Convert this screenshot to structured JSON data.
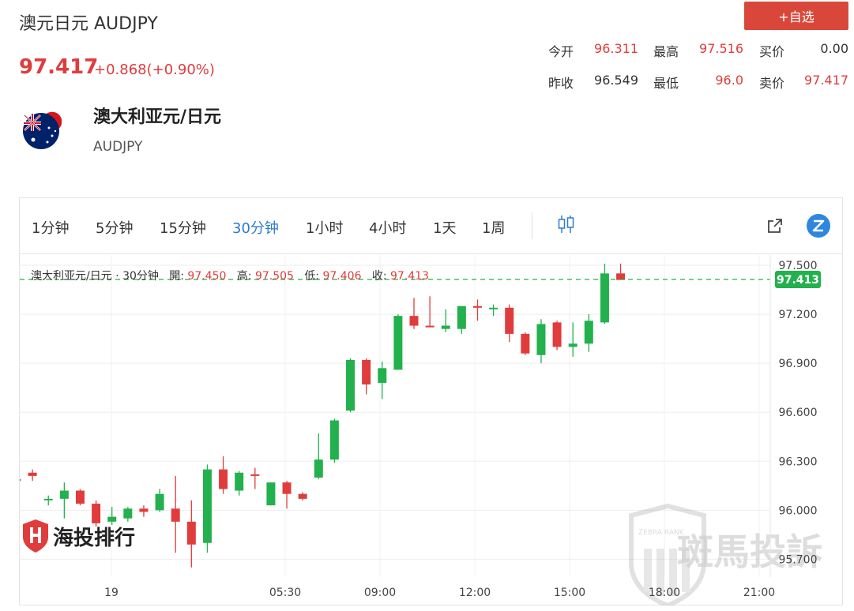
{
  "header": {
    "title": "澳元日元 AUDJPY",
    "price": "97.417",
    "change": "+0.868(+0.90%)",
    "add_button": "+自选"
  },
  "quote": {
    "open_label": "今开",
    "open": "96.311",
    "high_label": "最高",
    "high": "97.516",
    "bid_label": "买价",
    "bid": "0.00",
    "prev_close_label": "昨收",
    "prev_close": "96.549",
    "low_label": "最低",
    "low": "96.0",
    "ask_label": "卖价",
    "ask": "97.417"
  },
  "instrument": {
    "name": "澳大利亚元/日元",
    "code": "AUDJPY"
  },
  "toolbar": {
    "timeframes": [
      "1分钟",
      "5分钟",
      "15分钟",
      "30分钟",
      "1小时",
      "4小时",
      "1天",
      "1周"
    ],
    "active": "30分钟"
  },
  "legend": {
    "series": "澳大利亚元/日元 · 30分钟",
    "open_label": "開:",
    "open": "97.450",
    "high_label": "高:",
    "high": "97.505",
    "low_label": "低:",
    "low": "97.406",
    "close_label": "收:",
    "close": "97.413"
  },
  "watermarks": {
    "left": "海投排行",
    "right": "斑馬投訴",
    "badge": "ZEBRA RANK"
  },
  "colors": {
    "up": "#22b14c",
    "down": "#e03c3c",
    "accent": "#2e7bcf"
  },
  "chart_data": {
    "type": "candlestick",
    "x_ticks": [
      "19",
      "05:30",
      "09:00",
      "12:00",
      "15:00",
      "18:00",
      "21:00"
    ],
    "y_ticks": [
      "97.500",
      "97.200",
      "96.900",
      "96.600",
      "96.300",
      "96.000",
      "95.700"
    ],
    "ylim": [
      95.6,
      97.55
    ],
    "last_price": "97.413",
    "candles": [
      {
        "o": 96.18,
        "h": 96.2,
        "l": 96.15,
        "c": 96.19
      },
      {
        "o": 96.23,
        "h": 96.25,
        "l": 96.18,
        "c": 96.21
      },
      {
        "o": 96.07,
        "h": 96.09,
        "l": 96.03,
        "c": 96.07
      },
      {
        "o": 96.07,
        "h": 96.17,
        "l": 95.95,
        "c": 96.12
      },
      {
        "o": 96.12,
        "h": 96.13,
        "l": 96.03,
        "c": 96.04
      },
      {
        "o": 96.04,
        "h": 96.06,
        "l": 95.9,
        "c": 95.92
      },
      {
        "o": 95.93,
        "h": 96.02,
        "l": 95.91,
        "c": 95.96
      },
      {
        "o": 95.95,
        "h": 96.02,
        "l": 95.93,
        "c": 96.01
      },
      {
        "o": 96.01,
        "h": 96.03,
        "l": 95.96,
        "c": 95.99
      },
      {
        "o": 96.0,
        "h": 96.13,
        "l": 95.99,
        "c": 96.1
      },
      {
        "o": 96.01,
        "h": 96.21,
        "l": 95.74,
        "c": 95.93
      },
      {
        "o": 95.93,
        "h": 96.06,
        "l": 95.65,
        "c": 95.79
      },
      {
        "o": 95.8,
        "h": 96.28,
        "l": 95.74,
        "c": 96.25
      },
      {
        "o": 96.25,
        "h": 96.33,
        "l": 96.1,
        "c": 96.13
      },
      {
        "o": 96.12,
        "h": 96.24,
        "l": 96.09,
        "c": 96.23
      },
      {
        "o": 96.22,
        "h": 96.26,
        "l": 96.13,
        "c": 96.21
      },
      {
        "o": 96.03,
        "h": 96.17,
        "l": 96.03,
        "c": 96.17
      },
      {
        "o": 96.17,
        "h": 96.18,
        "l": 96.01,
        "c": 96.1
      },
      {
        "o": 96.1,
        "h": 96.11,
        "l": 96.06,
        "c": 96.07
      },
      {
        "o": 96.2,
        "h": 96.47,
        "l": 96.19,
        "c": 96.31
      },
      {
        "o": 96.31,
        "h": 96.56,
        "l": 96.29,
        "c": 96.55
      },
      {
        "o": 96.61,
        "h": 96.93,
        "l": 96.6,
        "c": 96.92
      },
      {
        "o": 96.92,
        "h": 96.93,
        "l": 96.71,
        "c": 96.77
      },
      {
        "o": 96.78,
        "h": 96.91,
        "l": 96.68,
        "c": 96.87
      },
      {
        "o": 96.86,
        "h": 97.2,
        "l": 96.86,
        "c": 97.19
      },
      {
        "o": 97.19,
        "h": 97.3,
        "l": 97.11,
        "c": 97.13
      },
      {
        "o": 97.13,
        "h": 97.31,
        "l": 97.12,
        "c": 97.12
      },
      {
        "o": 97.11,
        "h": 97.23,
        "l": 97.09,
        "c": 97.13
      },
      {
        "o": 97.11,
        "h": 97.25,
        "l": 97.08,
        "c": 97.25
      },
      {
        "o": 97.25,
        "h": 97.29,
        "l": 97.16,
        "c": 97.24
      },
      {
        "o": 97.24,
        "h": 97.26,
        "l": 97.19,
        "c": 97.24
      },
      {
        "o": 97.24,
        "h": 97.26,
        "l": 97.03,
        "c": 97.08
      },
      {
        "o": 97.08,
        "h": 97.09,
        "l": 96.95,
        "c": 96.96
      },
      {
        "o": 96.95,
        "h": 97.17,
        "l": 96.9,
        "c": 97.14
      },
      {
        "o": 97.15,
        "h": 97.16,
        "l": 96.98,
        "c": 97.0
      },
      {
        "o": 97.0,
        "h": 97.15,
        "l": 96.94,
        "c": 97.02
      },
      {
        "o": 97.02,
        "h": 97.2,
        "l": 96.97,
        "c": 97.16
      },
      {
        "o": 97.15,
        "h": 97.51,
        "l": 97.14,
        "c": 97.45
      },
      {
        "o": 97.45,
        "h": 97.51,
        "l": 97.41,
        "c": 97.41
      }
    ]
  }
}
